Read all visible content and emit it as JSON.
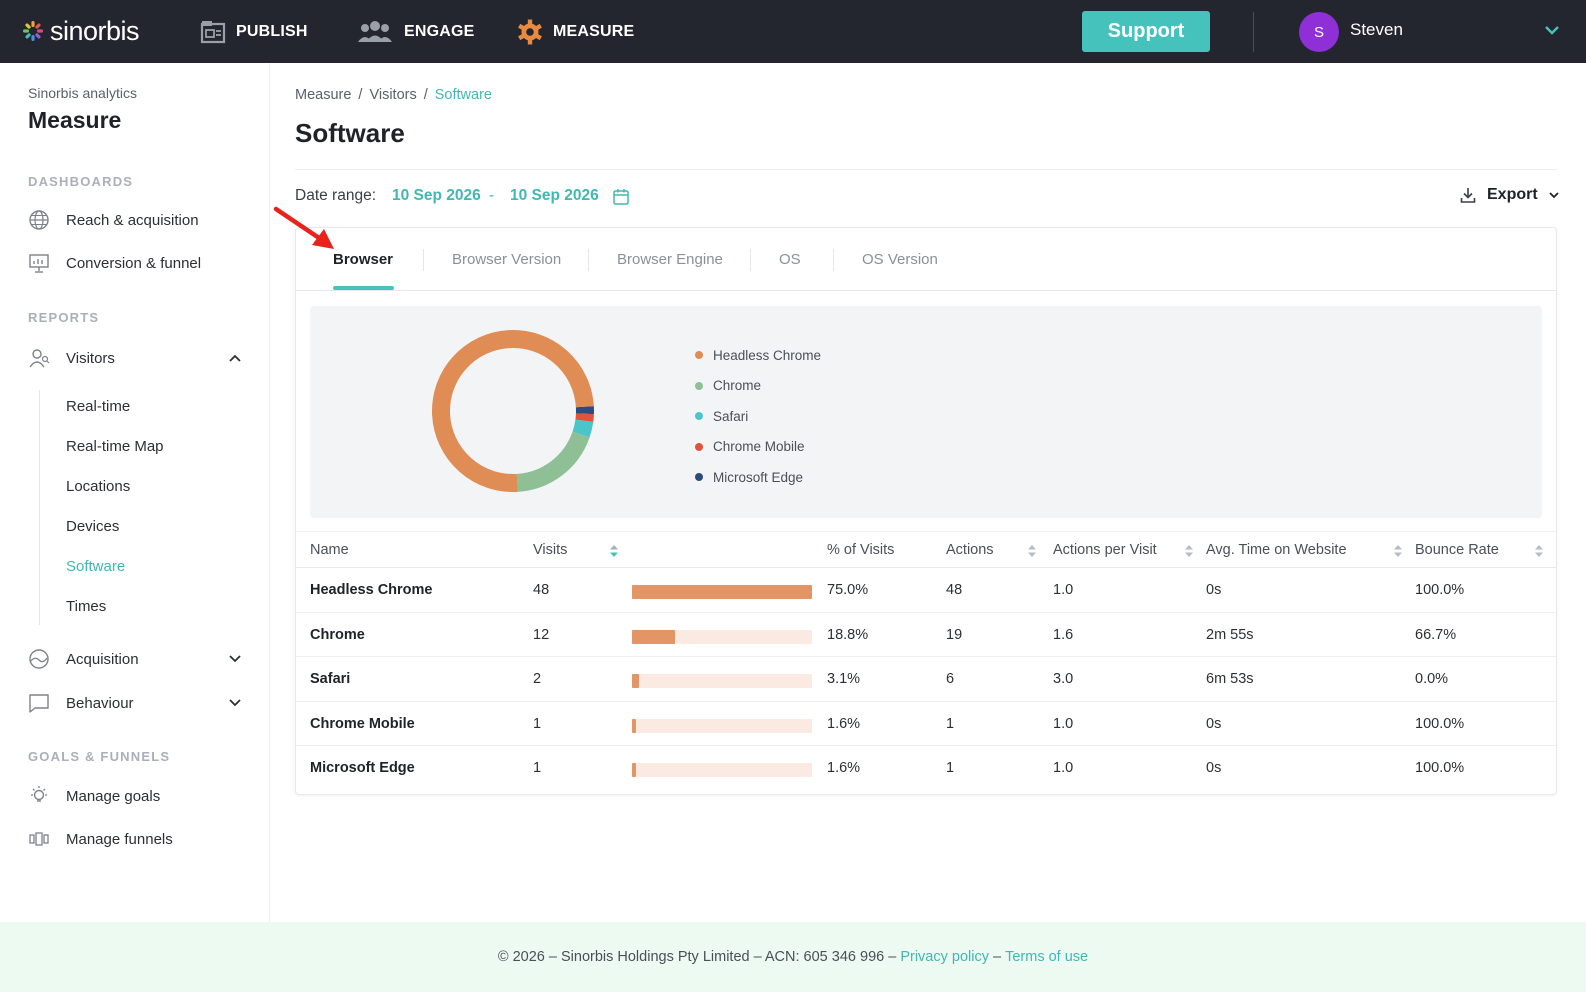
{
  "app": {
    "brand": "sinorbis"
  },
  "topnav": {
    "items": [
      {
        "label": "PUBLISH",
        "icon": "publish-icon"
      },
      {
        "label": "ENGAGE",
        "icon": "engage-icon"
      },
      {
        "label": "MEASURE",
        "icon": "measure-icon",
        "accent": "#e98a41"
      }
    ],
    "support_label": "Support",
    "user": {
      "initial": "S",
      "name": "Steven",
      "avatar_color": "#8e2fd8"
    }
  },
  "sidebar": {
    "subtitle": "Sinorbis analytics",
    "title": "Measure",
    "sections": {
      "dashboards": "DASHBOARDS",
      "reports": "REPORTS",
      "goals": "GOALS & FUNNELS"
    },
    "dashboards": [
      {
        "label": "Reach & acquisition",
        "icon": "globe-icon"
      },
      {
        "label": "Conversion & funnel",
        "icon": "presentation-icon"
      }
    ],
    "visitors": {
      "label": "Visitors",
      "icon": "visitors-icon",
      "children": [
        "Real-time",
        "Real-time Map",
        "Locations",
        "Devices",
        "Software",
        "Times"
      ],
      "active_child": "Software"
    },
    "acquisition": {
      "label": "Acquisition",
      "icon": "acquisition-icon"
    },
    "behaviour": {
      "label": "Behaviour",
      "icon": "chat-icon"
    },
    "goals": [
      {
        "label": "Manage goals",
        "icon": "lightbulb-icon"
      },
      {
        "label": "Manage funnels",
        "icon": "funnel-icon"
      }
    ]
  },
  "main": {
    "breadcrumb": [
      "Measure",
      "Visitors",
      "Software"
    ],
    "title": "Software",
    "date_range": {
      "label": "Date range:",
      "from": "10 Sep 2026",
      "separator": "-",
      "to": "10 Sep 2026"
    },
    "export_label": "Export",
    "tabs": [
      "Browser",
      "Browser Version",
      "Browser Engine",
      "OS",
      "OS Version"
    ],
    "active_tab": "Browser",
    "columns": [
      "Name",
      "Visits",
      "% of Visits",
      "Actions",
      "Actions per Visit",
      "Avg. Time on Website",
      "Bounce Rate"
    ],
    "rows": [
      {
        "name": "Headless Chrome",
        "visits": "48",
        "pct": "75.0%",
        "actions": "48",
        "apv": "1.0",
        "avg_time": "0s",
        "bounce": "100.0%"
      },
      {
        "name": "Chrome",
        "visits": "12",
        "pct": "18.8%",
        "actions": "19",
        "apv": "1.6",
        "avg_time": "2m 55s",
        "bounce": "66.7%"
      },
      {
        "name": "Safari",
        "visits": "2",
        "pct": "3.1%",
        "actions": "6",
        "apv": "3.0",
        "avg_time": "6m 53s",
        "bounce": "0.0%"
      },
      {
        "name": "Chrome Mobile",
        "visits": "1",
        "pct": "1.6%",
        "actions": "1",
        "apv": "1.0",
        "avg_time": "0s",
        "bounce": "100.0%"
      },
      {
        "name": "Microsoft Edge",
        "visits": "1",
        "pct": "1.6%",
        "actions": "1",
        "apv": "1.0",
        "avg_time": "0s",
        "bounce": "100.0%"
      }
    ]
  },
  "chart_data": {
    "type": "pie",
    "donut": true,
    "categories": [
      "Headless Chrome",
      "Chrome",
      "Safari",
      "Chrome Mobile",
      "Microsoft Edge"
    ],
    "values": [
      48,
      12,
      2,
      1,
      1
    ],
    "colors": [
      "#e08c55",
      "#8fbf95",
      "#4bc6c8",
      "#e0533d",
      "#2d4b7c"
    ],
    "title": "",
    "legend": "right"
  },
  "footer": {
    "text": "© 2026 – Sinorbis Holdings Pty Limited – ACN: 605 346 996 –",
    "privacy": "Privacy policy",
    "dash": "–",
    "terms": "Terms of use"
  }
}
